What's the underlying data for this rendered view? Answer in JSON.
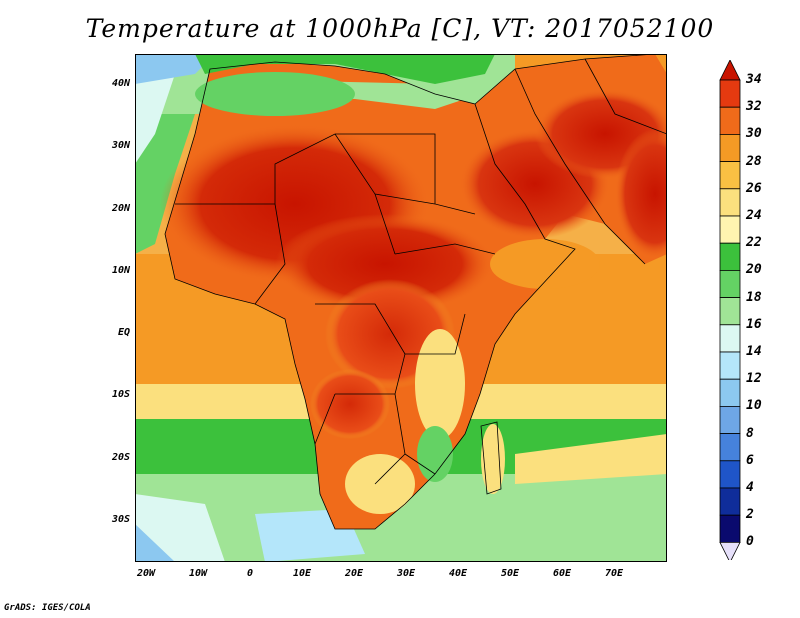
{
  "title": "Temperature at 1000hPa [C], VT: 2017052100",
  "credit": "GrADS: IGES/COLA",
  "map": {
    "region": "Africa and Arabian Peninsula",
    "variable": "temperature",
    "units": "C",
    "lat_range": [
      -37,
      45
    ],
    "lon_range": [
      -22,
      80
    ],
    "lat_ticks": [
      "40N",
      "30N",
      "20N",
      "10N",
      "EQ",
      "10S",
      "20S",
      "30S"
    ],
    "lon_ticks": [
      "20W",
      "10W",
      "0",
      "10E",
      "20E",
      "30E",
      "40E",
      "50E",
      "60E",
      "70E"
    ]
  },
  "colorbar": {
    "labels": [
      "34",
      "32",
      "30",
      "28",
      "26",
      "24",
      "22",
      "20",
      "18",
      "16",
      "14",
      "12",
      "10",
      "8",
      "6",
      "4",
      "2",
      "0"
    ],
    "colors": [
      "#c81400",
      "#e53a10",
      "#f06b1a",
      "#f59a25",
      "#f9c043",
      "#fbe07e",
      "#fff5b0",
      "#3cc13c",
      "#64d264",
      "#a0e496",
      "#dcf8f2",
      "#b4e6fa",
      "#8cc8f0",
      "#6ea6e6",
      "#4682dc",
      "#1f55c8",
      "#0f2d9a",
      "#0a0a6e",
      "#e6e0fa"
    ]
  }
}
